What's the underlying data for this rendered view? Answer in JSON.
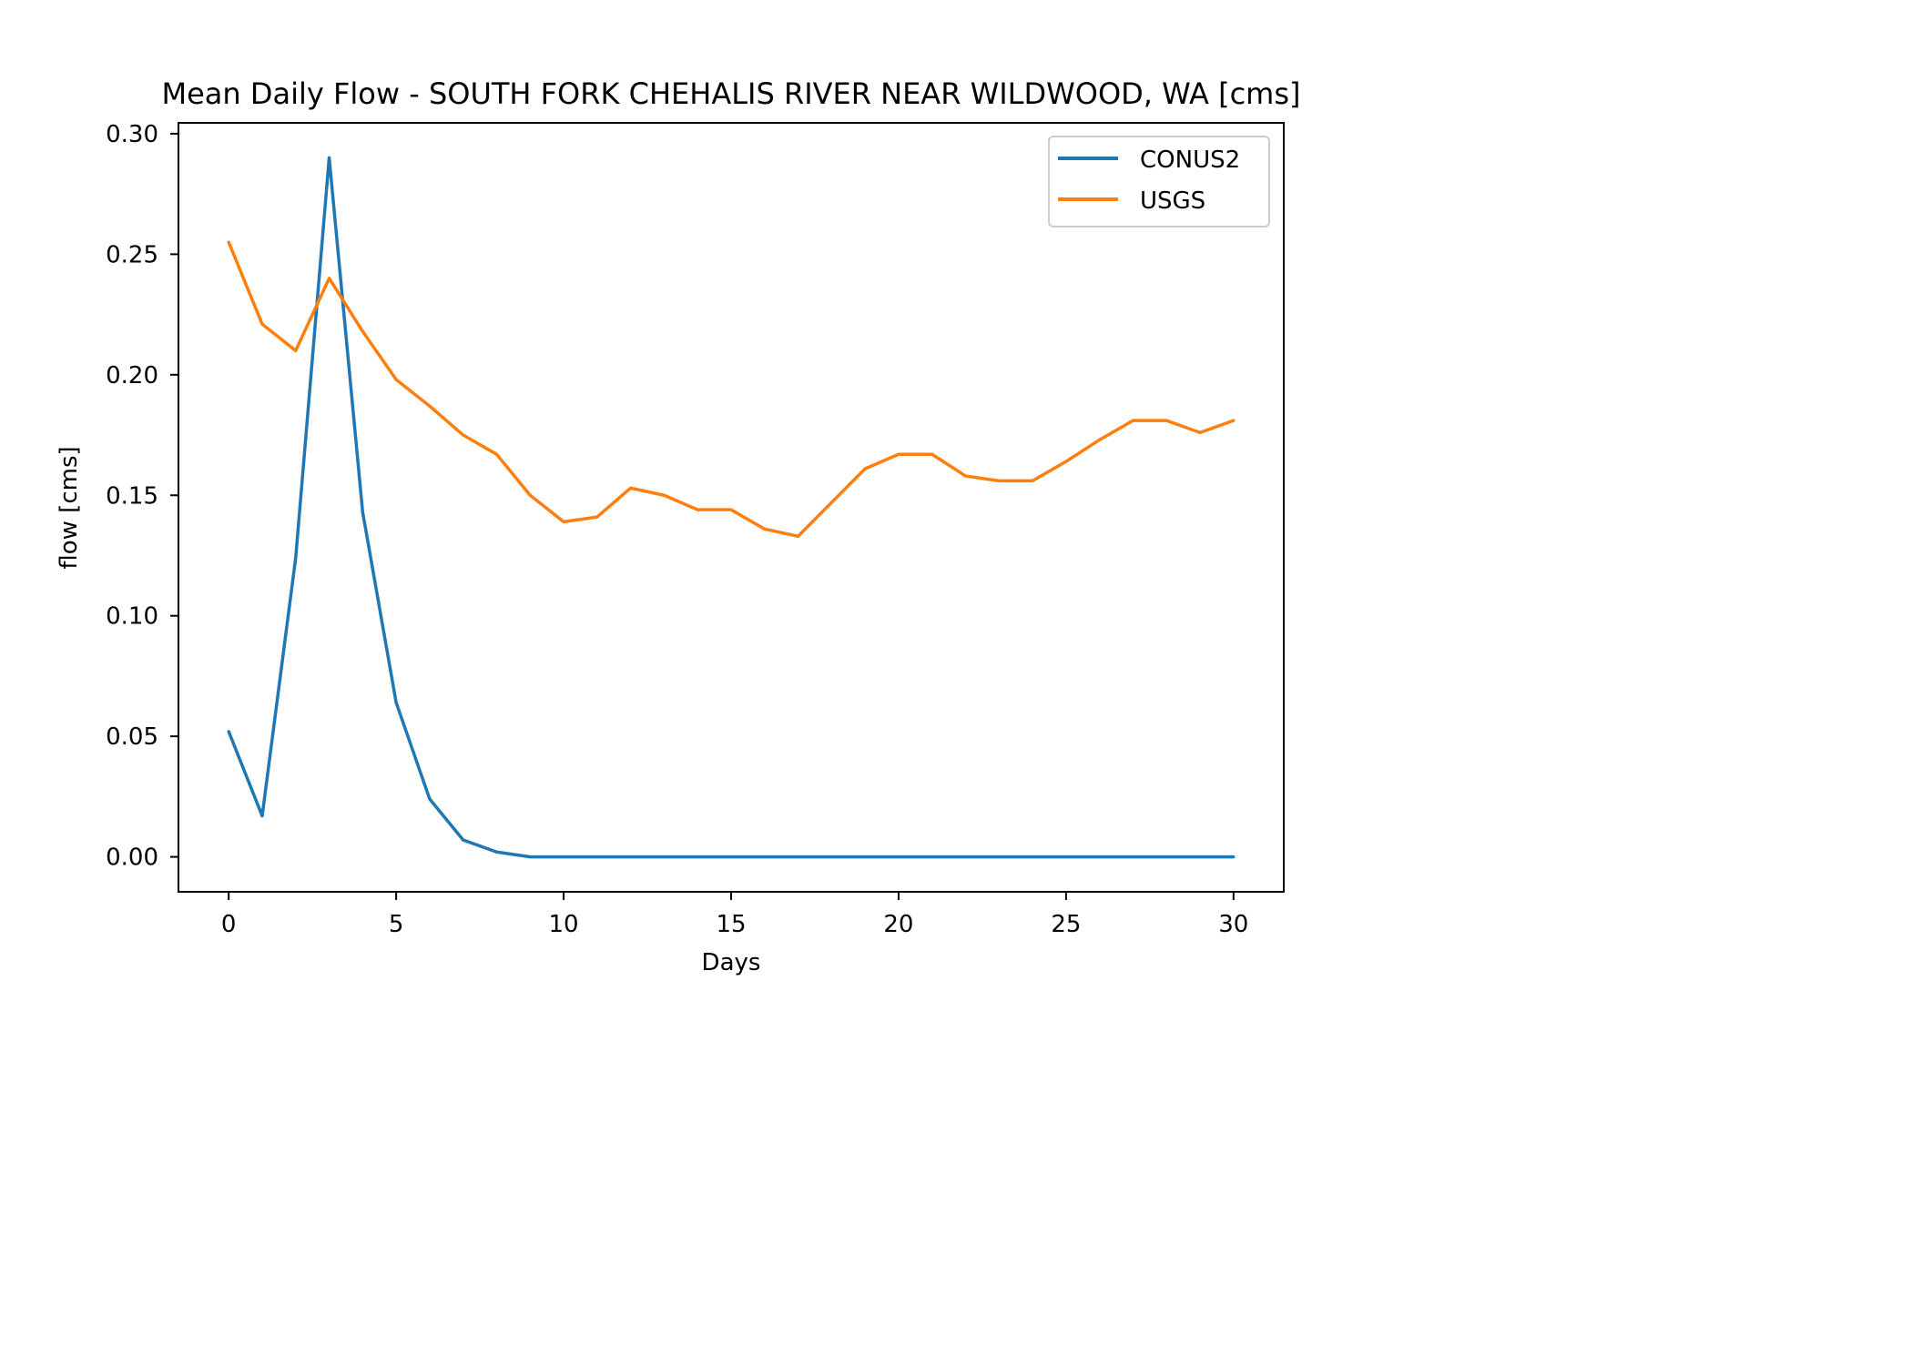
{
  "chart_data": {
    "type": "line",
    "title": "Mean Daily Flow - SOUTH FORK CHEHALIS RIVER NEAR WILDWOOD, WA [cms]",
    "xlabel": "Days",
    "ylabel": "flow [cms]",
    "xlim": [
      -1.5,
      31.5
    ],
    "ylim": [
      -0.0145,
      0.3045
    ],
    "xticks": [
      0,
      5,
      10,
      15,
      20,
      25,
      30
    ],
    "xtick_labels": [
      "0",
      "5",
      "10",
      "15",
      "20",
      "25",
      "30"
    ],
    "yticks": [
      0.0,
      0.05,
      0.1,
      0.15,
      0.2,
      0.25,
      0.3
    ],
    "ytick_labels": [
      "0.00",
      "0.05",
      "0.10",
      "0.15",
      "0.20",
      "0.25",
      "0.30"
    ],
    "grid": false,
    "legend_position": "top-right",
    "x": [
      0,
      1,
      2,
      3,
      4,
      5,
      6,
      7,
      8,
      9,
      10,
      11,
      12,
      13,
      14,
      15,
      16,
      17,
      18,
      19,
      20,
      21,
      22,
      23,
      24,
      25,
      26,
      27,
      28,
      29,
      30
    ],
    "series": [
      {
        "name": "CONUS2",
        "color": "#1f77b4",
        "values": [
          0.052,
          0.017,
          0.124,
          0.29,
          0.143,
          0.064,
          0.024,
          0.007,
          0.002,
          0.0,
          0.0,
          0.0,
          0.0,
          0.0,
          0.0,
          0.0,
          0.0,
          0.0,
          0.0,
          0.0,
          0.0,
          0.0,
          0.0,
          0.0,
          0.0,
          0.0,
          0.0,
          0.0,
          0.0,
          0.0,
          0.0
        ]
      },
      {
        "name": "USGS",
        "color": "#ff7f0e",
        "values": [
          0.255,
          0.221,
          0.21,
          0.24,
          0.218,
          0.198,
          0.187,
          0.175,
          0.167,
          0.15,
          0.139,
          0.141,
          0.153,
          0.15,
          0.144,
          0.144,
          0.136,
          0.133,
          0.147,
          0.161,
          0.167,
          0.167,
          0.158,
          0.156,
          0.156,
          0.164,
          0.173,
          0.181,
          0.181,
          0.176,
          0.181
        ]
      }
    ]
  }
}
